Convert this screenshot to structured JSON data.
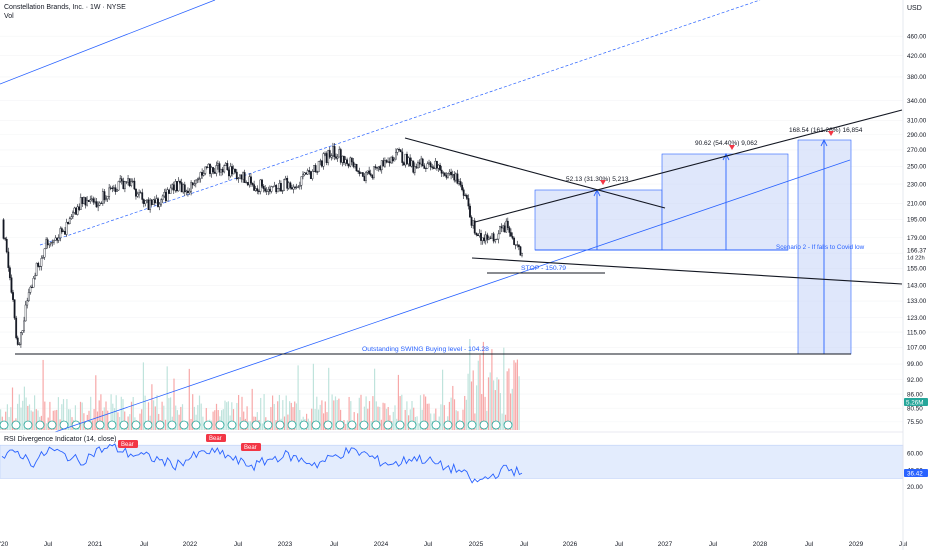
{
  "header": {
    "symbol_title": "Constellation Brands, Inc. · 1W · NYSE",
    "volume_label": "Vol",
    "currency": "USD"
  },
  "colors": {
    "up_candle": "#131722",
    "down_candle": "#131722",
    "trendline_blue": "#2962ff",
    "box_fill": "#c5d3f7",
    "target_arrow": "#f23645",
    "rsi_line": "#2962ff",
    "rsi_band": "#e3ecfd",
    "price_tag_blue": "#2962ff",
    "volume_up": "#f7a8a8",
    "volume_down": "#bfe3dc",
    "earnings_badge": "#26a69a",
    "bear_label": "#f23645"
  },
  "price_axis": {
    "ticks": [
      "460.00",
      "420.00",
      "380.00",
      "340.00",
      "310.00",
      "290.00",
      "270.00",
      "250.00",
      "230.00",
      "210.00",
      "195.00",
      "179.00",
      "166.37",
      "155.00",
      "143.00",
      "133.00",
      "123.00",
      "115.00",
      "107.00",
      "99.00",
      "92.00",
      "86.00",
      "80.50",
      "75.50"
    ],
    "last_price": "166.37",
    "last_time": "1d 22h",
    "volume_badge": "5.26M",
    "scale": "log"
  },
  "time_axis": {
    "ticks": [
      "'20",
      "Jul",
      "2021",
      "Jul",
      "2022",
      "Jul",
      "2023",
      "Jul",
      "2024",
      "Jul",
      "2025",
      "Jul",
      "2026",
      "Jul",
      "2027",
      "Jul",
      "2028",
      "Jul",
      "2029",
      "Jul"
    ]
  },
  "annotations": {
    "stop": "STOP - 150.79",
    "swing_level": "Outstanding SWING Buying level - 104.28",
    "target1": "52.13 (31.30%) 5,213",
    "target2": "90.62 (54.40%) 9,062",
    "target3": "168.54 (161.26%) 16,854",
    "scenario2": "Scenario 2 - If falls to Covid low"
  },
  "rsi": {
    "title": "RSI Divergence Indicator (14, close)",
    "ticks": [
      "60.00",
      "40.00",
      "20.00"
    ],
    "last_value": "36.42",
    "bear_label": "Bear",
    "upper_band": 70,
    "lower_band": 30
  },
  "chart_data": {
    "type": "line",
    "title": "Constellation Brands, Inc. · 1W · NYSE",
    "y_scale": "log",
    "ylim": [
      72,
      520
    ],
    "x": [
      "2020-01",
      "2020-03",
      "2020-05",
      "2020-07",
      "2020-09",
      "2020-11",
      "2021-01",
      "2021-03",
      "2021-05",
      "2021-07",
      "2021-09",
      "2021-11",
      "2022-01",
      "2022-03",
      "2022-05",
      "2022-07",
      "2022-09",
      "2022-11",
      "2023-01",
      "2023-03",
      "2023-05",
      "2023-07",
      "2023-09",
      "2023-11",
      "2024-01",
      "2024-03",
      "2024-05",
      "2024-07",
      "2024-09",
      "2024-11",
      "2025-01",
      "2025-02",
      "2025-04",
      "2025-06"
    ],
    "series": [
      {
        "values": [
          190,
          106,
          150,
          178,
          185,
          210,
          212,
          225,
          235,
          210,
          210,
          230,
          225,
          245,
          250,
          240,
          230,
          225,
          230,
          232,
          250,
          270,
          255,
          240,
          248,
          268,
          250,
          255,
          245,
          235,
          183,
          178,
          188,
          166.37
        ]
      }
    ],
    "levels": {
      "stop": 150.79,
      "swing_buy": 104.28,
      "last": 166.37
    },
    "targets": [
      {
        "gain": 52.13,
        "pct": 31.3,
        "ticks": 5213
      },
      {
        "gain": 90.62,
        "pct": 54.4,
        "ticks": 9062
      },
      {
        "gain": 168.54,
        "pct": 161.26,
        "ticks": 16854
      }
    ],
    "rsi_series": [
      55,
      62,
      48,
      65,
      58,
      50,
      63,
      68,
      60,
      57,
      52,
      46,
      55,
      62,
      60,
      50,
      45,
      53,
      58,
      52,
      47,
      56,
      63,
      60,
      50,
      47,
      55,
      52,
      44,
      40,
      25,
      32,
      42,
      36.42
    ]
  }
}
